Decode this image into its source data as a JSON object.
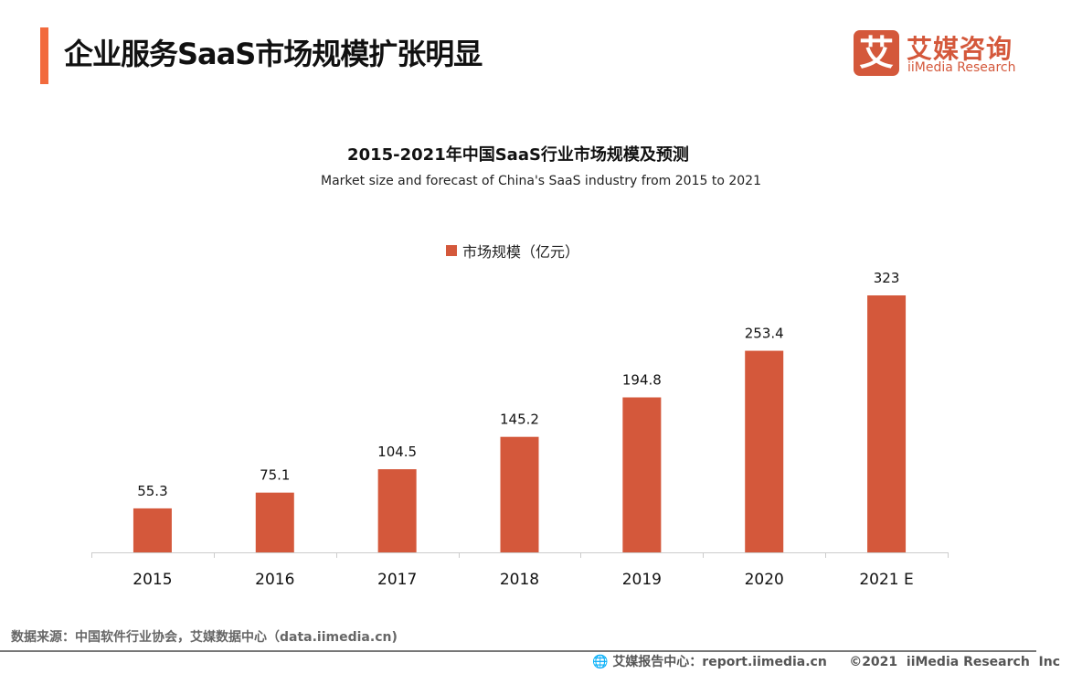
{
  "header": {
    "title": "企业服务SaaS市场规模扩张明显"
  },
  "logo": {
    "glyph": "艾",
    "cn": "艾媒咨询",
    "en": "iiMedia Research"
  },
  "chart_data": {
    "type": "bar",
    "title": "2015-2021年中国SaaS行业市场规模及预测",
    "subtitle": "Market size and forecast of China's SaaS industry from 2015 to 2021",
    "categories": [
      "2015",
      "2016",
      "2017",
      "2018",
      "2019",
      "2020",
      "2021 E"
    ],
    "series": [
      {
        "name": "市场规模（亿元）",
        "values": [
          55.3,
          75.1,
          104.5,
          145.2,
          194.8,
          253.4,
          323
        ],
        "labels": [
          "55.3",
          "75.1",
          "104.5",
          "145.2",
          "194.8",
          "253.4",
          "323"
        ]
      }
    ],
    "ylim": [
      0,
      323
    ],
    "legend": "top",
    "grid": false,
    "color": "#d4583b"
  },
  "footer": {
    "source": "数据来源：中国软件行业协会，艾媒数据中心（data.iimedia.cn)",
    "report": "艾媒报告中心：report.iimedia.cn",
    "copyright": "©2021  iiMedia Research  Inc"
  }
}
